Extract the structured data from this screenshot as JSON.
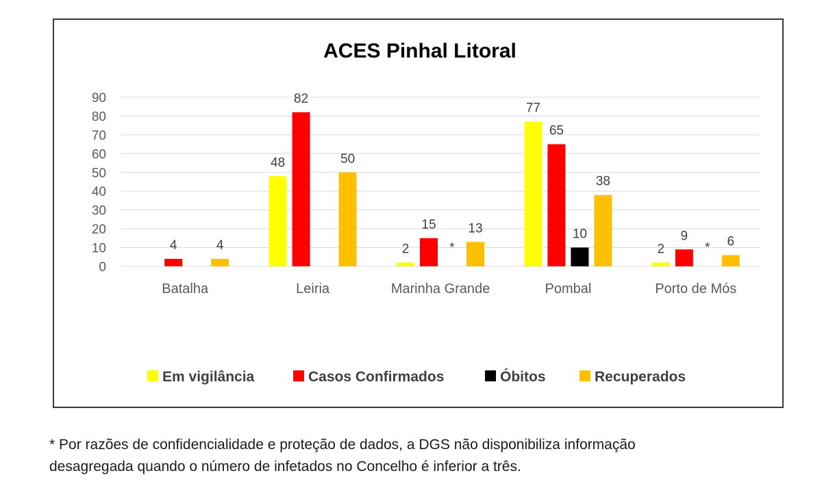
{
  "chart_data": {
    "type": "bar",
    "title": "ACES Pinhal Litoral",
    "categories": [
      "Batalha",
      "Leiria",
      "Marinha Grande",
      "Pombal",
      "Porto de Mós"
    ],
    "ylim": [
      0,
      90
    ],
    "yticks": [
      0,
      10,
      20,
      30,
      40,
      50,
      60,
      70,
      80,
      90
    ],
    "grid": true,
    "legend_position": "bottom",
    "series": [
      {
        "name": "Em vigilância",
        "color": "#FFFF00",
        "values": [
          null,
          48,
          2,
          77,
          2
        ]
      },
      {
        "name": "Casos Confirmados",
        "color": "#FF0000",
        "values": [
          4,
          82,
          15,
          65,
          9
        ]
      },
      {
        "name": "Óbitos",
        "color": "#000000",
        "values": [
          null,
          null,
          null,
          10,
          null
        ]
      },
      {
        "name": "Recuperados",
        "color": "#FFC000",
        "values": [
          4,
          50,
          13,
          38,
          6
        ]
      }
    ],
    "annotations": [
      {
        "category": "Marinha Grande",
        "series": "Óbitos",
        "text": "*"
      },
      {
        "category": "Porto de Mós",
        "series": "Óbitos",
        "text": "*"
      }
    ]
  },
  "footnote": {
    "line1": "* Por razões de confidencialidade e proteção de dados, a DGS não disponibiliza informação",
    "line2": "desagregada quando o número de infetados no Concelho é inferior a três."
  }
}
